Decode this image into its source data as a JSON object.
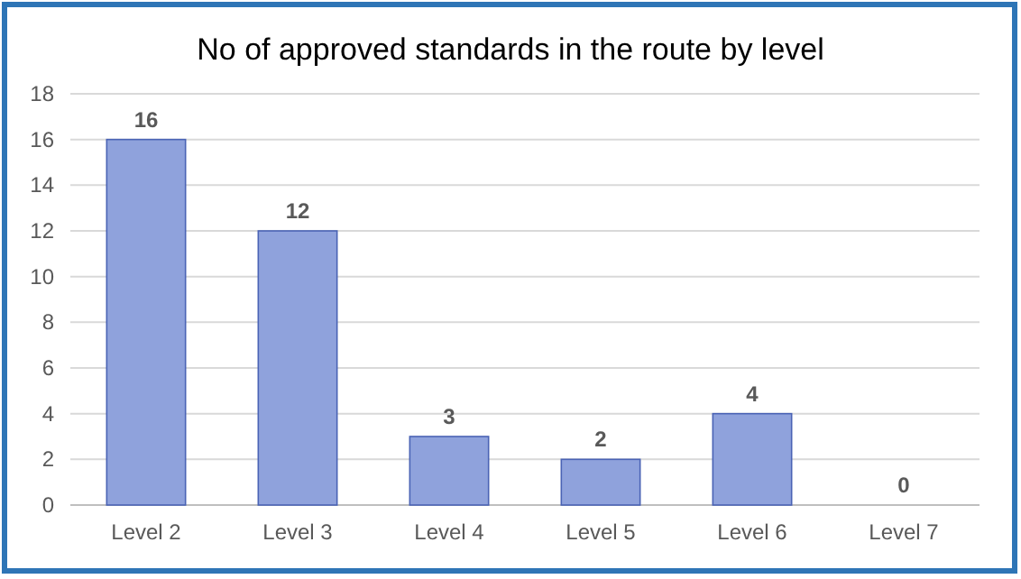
{
  "chart_data": {
    "type": "bar",
    "title": "No of approved standards in the route by level",
    "categories": [
      "Level 2",
      "Level 3",
      "Level 4",
      "Level 5",
      "Level 6",
      "Level 7"
    ],
    "values": [
      16,
      12,
      3,
      2,
      4,
      0
    ],
    "color": "#8fa2dc",
    "ylim": [
      0,
      18
    ],
    "yticks": [
      0,
      2,
      4,
      6,
      8,
      10,
      12,
      14,
      16,
      18
    ],
    "grid": "y",
    "data_labels": true
  }
}
